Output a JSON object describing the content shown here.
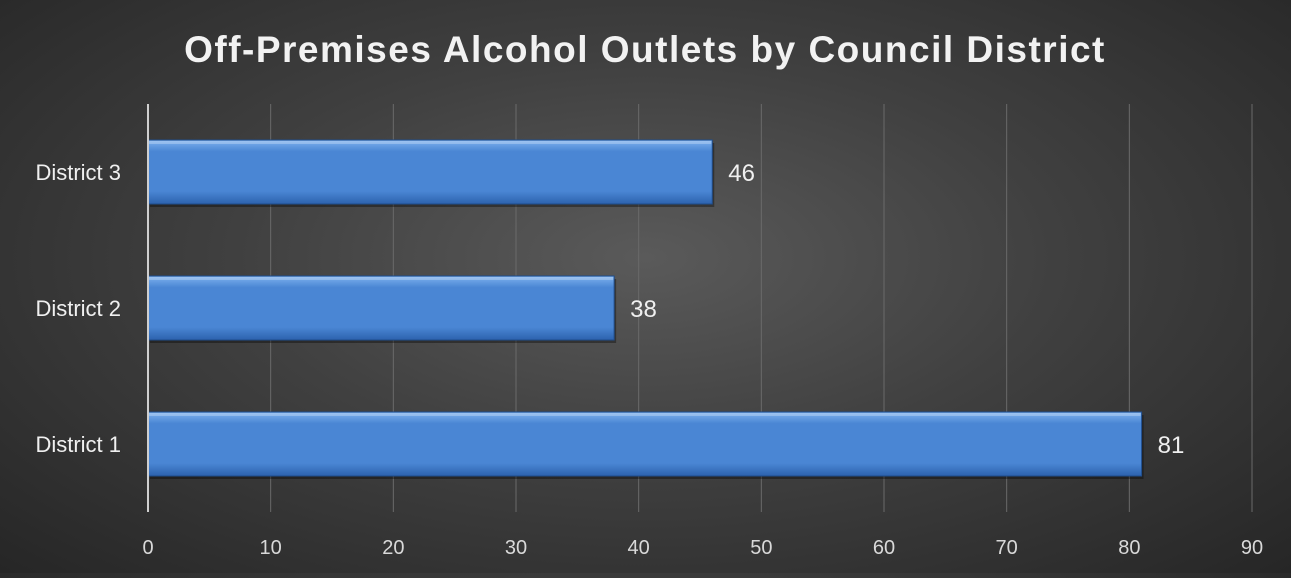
{
  "chart_data": {
    "type": "bar",
    "orientation": "horizontal",
    "title": "Off-Premises Alcohol Outlets by Council District",
    "xlabel": "",
    "ylabel": "",
    "categories": [
      "District 3",
      "District 2",
      "District 1"
    ],
    "values": [
      46,
      38,
      81
    ],
    "data_labels": [
      "46",
      "38",
      "81"
    ],
    "xlim": [
      0,
      90
    ],
    "x_ticks": [
      0,
      10,
      20,
      30,
      40,
      50,
      60,
      70,
      80,
      90
    ],
    "x_tick_labels": [
      "0",
      "10",
      "20",
      "30",
      "40",
      "50",
      "60",
      "70",
      "80",
      "90"
    ],
    "grid": "vertical",
    "legend": "none",
    "colors": {
      "bar_fill": "#4a86d4",
      "bar_light": "#7fb2ee",
      "bar_dark": "#2c62ad",
      "bar_edge": "#1f4d8c",
      "gridline": "#6a6a6a",
      "axis_line": "#cfcfcf",
      "title_text": "#f2f2f2",
      "label_text": "#f0f0f0",
      "tick_text": "#d9d9d9"
    }
  }
}
